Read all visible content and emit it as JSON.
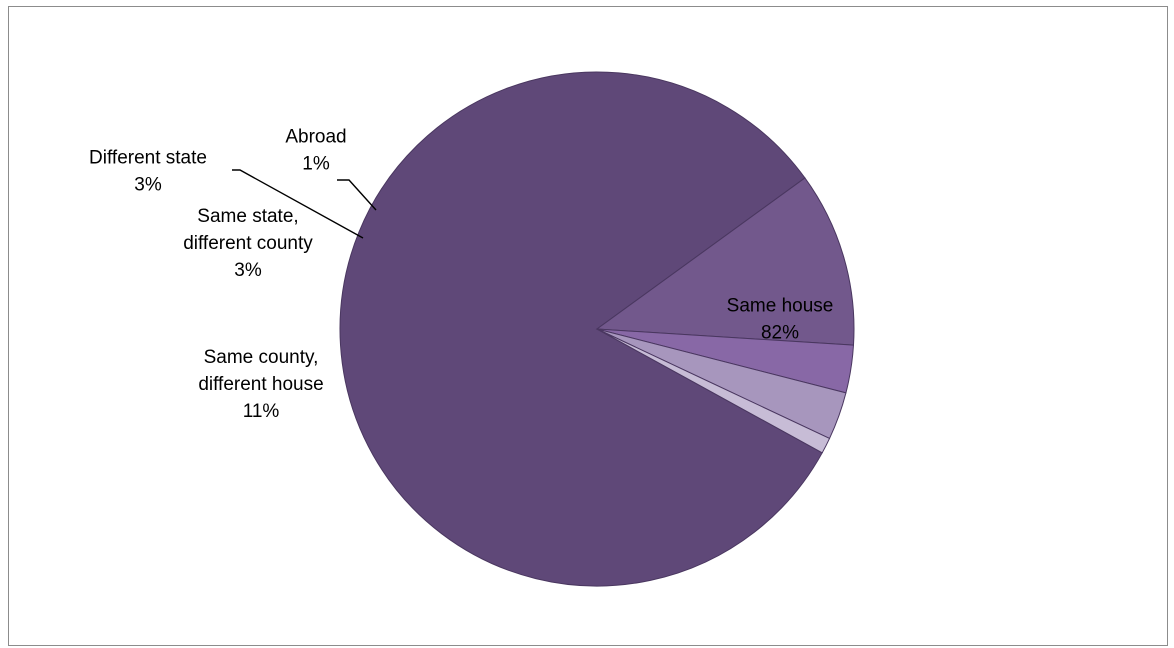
{
  "chart_data": {
    "type": "pie",
    "title": "",
    "slices": [
      {
        "name": "Same house",
        "value": 82,
        "label": "82%",
        "label_lines": [
          "Same house",
          "82%"
        ],
        "color": "#5f4878"
      },
      {
        "name": "Same county, different house",
        "value": 11,
        "label": "11%",
        "label_lines": [
          "Same county,",
          "different house",
          "11%"
        ],
        "color": "#72588c"
      },
      {
        "name": "Same state, different county",
        "value": 3,
        "label": "3%",
        "label_lines": [
          "Same state,",
          "different county",
          "3%"
        ],
        "color": "#8868a6"
      },
      {
        "name": "Different state",
        "value": 3,
        "label": "3%",
        "label_lines": [
          "Different state",
          "3%"
        ],
        "color": "#a796bd"
      },
      {
        "name": "Abroad",
        "value": 1,
        "label": "1%",
        "label_lines": [
          "Abroad",
          "1%"
        ],
        "color": "#c7bcd6"
      }
    ],
    "legend": "none",
    "labels": "data labels with category name and percentage"
  }
}
